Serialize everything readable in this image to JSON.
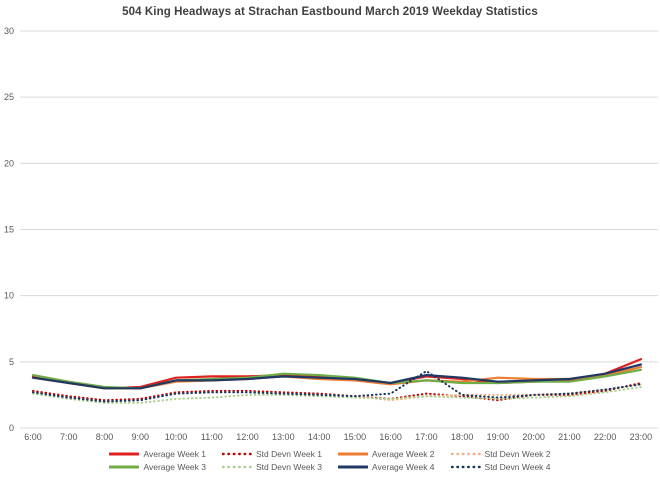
{
  "page": {
    "background": "#ffffff",
    "grid_color": "#d9d9d9",
    "text_color": "#595959",
    "title_color": "#404040"
  },
  "chart_data": {
    "type": "line",
    "title": "504 King Headways at Strachan Eastbound March 2019 Weekday Statistics",
    "xlabel": "",
    "ylabel": "",
    "ylim": [
      0,
      30
    ],
    "ytick_step": 5,
    "ytick_labels": [
      "0",
      "5",
      "10",
      "15",
      "20",
      "25",
      "30"
    ],
    "grid": true,
    "legend_position": "bottom",
    "categories": [
      "6:00",
      "7:00",
      "8:00",
      "9:00",
      "10:00",
      "11:00",
      "12:00",
      "13:00",
      "14:00",
      "15:00",
      "16:00",
      "17:00",
      "18:00",
      "19:00",
      "20:00",
      "21:00",
      "22:00",
      "23:00"
    ],
    "series": [
      {
        "name": "Average Week 1",
        "color": "#e02020",
        "style": "solid",
        "values": [
          3.9,
          3.4,
          3.0,
          3.1,
          3.8,
          3.9,
          3.9,
          4.0,
          3.9,
          3.7,
          3.4,
          3.9,
          3.7,
          3.4,
          3.5,
          3.6,
          4.1,
          5.2
        ]
      },
      {
        "name": "Std Devn Week 1",
        "color": "#c00000",
        "style": "dotted",
        "values": [
          2.8,
          2.4,
          2.1,
          2.2,
          2.7,
          2.8,
          2.8,
          2.7,
          2.6,
          2.4,
          2.2,
          2.6,
          2.4,
          2.1,
          2.5,
          2.5,
          2.8,
          3.4
        ]
      },
      {
        "name": "Average Week 2",
        "color": "#ed7d31",
        "style": "solid",
        "values": [
          3.8,
          3.4,
          3.0,
          3.0,
          3.5,
          3.6,
          3.7,
          3.9,
          3.7,
          3.6,
          3.3,
          3.6,
          3.5,
          3.8,
          3.7,
          3.7,
          4.0,
          4.6
        ]
      },
      {
        "name": "Std Devn Week 2",
        "color": "#f4b183",
        "style": "dotted",
        "values": [
          2.7,
          2.3,
          2.0,
          2.1,
          2.6,
          2.7,
          2.7,
          2.6,
          2.5,
          2.4,
          2.1,
          2.4,
          2.5,
          2.5,
          2.5,
          2.6,
          2.9,
          3.3
        ]
      },
      {
        "name": "Average Week 3",
        "color": "#70ad47",
        "style": "solid",
        "values": [
          4.0,
          3.5,
          3.1,
          3.0,
          3.6,
          3.7,
          3.8,
          4.1,
          4.0,
          3.8,
          3.4,
          3.6,
          3.4,
          3.4,
          3.5,
          3.5,
          3.9,
          4.4
        ]
      },
      {
        "name": "Std Devn Week 3",
        "color": "#a9d18e",
        "style": "dotted",
        "values": [
          2.6,
          2.2,
          1.9,
          1.9,
          2.2,
          2.3,
          2.5,
          2.5,
          2.4,
          2.3,
          2.2,
          2.4,
          2.3,
          2.2,
          2.3,
          2.4,
          2.7,
          3.1
        ]
      },
      {
        "name": "Average Week 4",
        "color": "#1f3864",
        "style": "solid",
        "values": [
          3.8,
          3.4,
          3.0,
          3.0,
          3.6,
          3.6,
          3.7,
          3.9,
          3.8,
          3.7,
          3.4,
          4.0,
          3.8,
          3.5,
          3.6,
          3.7,
          4.1,
          4.8
        ]
      },
      {
        "name": "Std Devn Week 4",
        "color": "#17375e",
        "style": "dotted",
        "values": [
          2.7,
          2.3,
          2.0,
          2.1,
          2.6,
          2.7,
          2.7,
          2.6,
          2.5,
          2.4,
          2.6,
          4.3,
          2.5,
          2.3,
          2.5,
          2.6,
          2.9,
          3.3
        ]
      }
    ]
  }
}
